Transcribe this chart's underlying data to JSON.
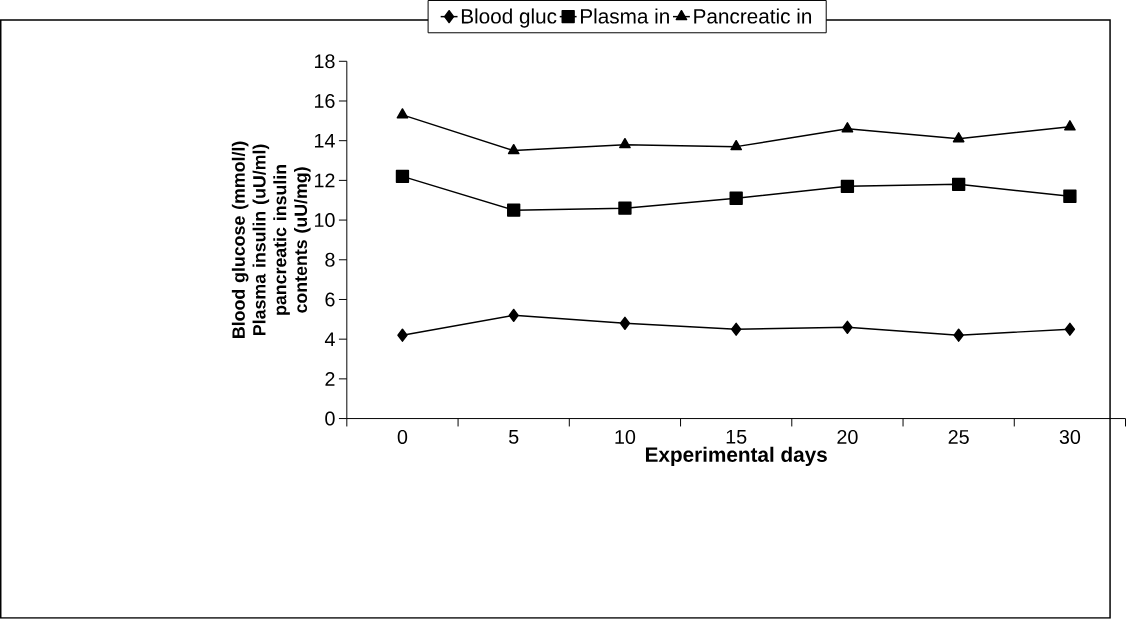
{
  "chart_data": {
    "type": "line",
    "xlabel": "Experimental days",
    "ylabel": "Blood glucose (mmol/l) Plasma insulin (uU/ml) pancreatic insulin contents (uU/mg)",
    "categories": [
      "0",
      "5",
      "10",
      "15",
      "20",
      "25",
      "30"
    ],
    "series": [
      {
        "name": "Blood gluc",
        "color": "#000000",
        "marker": "diamond",
        "values": [
          4.2,
          5.2,
          4.8,
          4.5,
          4.6,
          4.2,
          4.5
        ]
      },
      {
        "name": "Plasma in",
        "color": "#000000",
        "marker": "square",
        "values": [
          12.2,
          10.5,
          10.6,
          11.1,
          11.7,
          11.8,
          11.2
        ]
      },
      {
        "name": "Pancreatic in",
        "color": "#000000",
        "marker": "triangle",
        "values": [
          15.3,
          13.5,
          13.8,
          13.7,
          14.6,
          14.1,
          14.7
        ]
      }
    ],
    "ylim": [
      0,
      18
    ],
    "yticks": [
      0,
      2,
      4,
      6,
      8,
      10,
      12,
      14,
      16,
      18
    ],
    "grid": false,
    "legend": "top",
    "line_style": "solid"
  }
}
